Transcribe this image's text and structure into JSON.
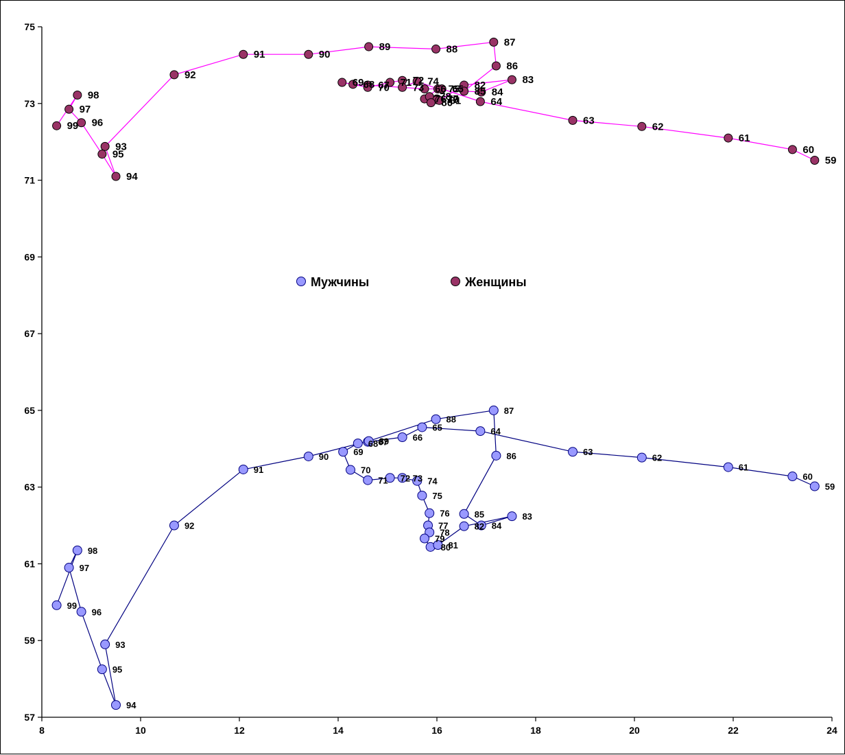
{
  "chart_data": {
    "type": "scatter",
    "title": "",
    "xlabel": "",
    "ylabel": "",
    "xlim": [
      8,
      24
    ],
    "ylim": [
      57,
      75
    ],
    "x_ticks": [
      "8",
      "10",
      "12",
      "14",
      "16",
      "18",
      "20",
      "22",
      "24"
    ],
    "y_ticks": [
      "57",
      "59",
      "61",
      "63",
      "65",
      "67",
      "69",
      "71",
      "73",
      "75"
    ],
    "grid": false,
    "legend_position": "center",
    "series": [
      {
        "name": "Мужчины",
        "color": "#9999ff",
        "line_color": "#000080",
        "points": [
          {
            "label": "59",
            "x": 23.65,
            "y": 63.02
          },
          {
            "label": "60",
            "x": 23.2,
            "y": 63.28
          },
          {
            "label": "61",
            "x": 21.9,
            "y": 63.52
          },
          {
            "label": "62",
            "x": 20.15,
            "y": 63.77
          },
          {
            "label": "63",
            "x": 18.75,
            "y": 63.92
          },
          {
            "label": "64",
            "x": 16.88,
            "y": 64.46
          },
          {
            "label": "65",
            "x": 15.7,
            "y": 64.56
          },
          {
            "label": "66",
            "x": 15.3,
            "y": 64.3
          },
          {
            "label": "67",
            "x": 14.6,
            "y": 64.18
          },
          {
            "label": "68",
            "x": 14.4,
            "y": 64.14
          },
          {
            "label": "69",
            "x": 14.1,
            "y": 63.92
          },
          {
            "label": "70",
            "x": 14.25,
            "y": 63.45
          },
          {
            "label": "71",
            "x": 14.6,
            "y": 63.18
          },
          {
            "label": "72",
            "x": 15.05,
            "y": 63.24
          },
          {
            "label": "73",
            "x": 15.3,
            "y": 63.24
          },
          {
            "label": "74",
            "x": 15.6,
            "y": 63.16
          },
          {
            "label": "75",
            "x": 15.7,
            "y": 62.78
          },
          {
            "label": "76",
            "x": 15.85,
            "y": 62.32
          },
          {
            "label": "77",
            "x": 15.82,
            "y": 62.0
          },
          {
            "label": "78",
            "x": 15.85,
            "y": 61.82
          },
          {
            "label": "79",
            "x": 15.75,
            "y": 61.66
          },
          {
            "label": "80",
            "x": 15.87,
            "y": 61.44
          },
          {
            "label": "81",
            "x": 16.02,
            "y": 61.49
          },
          {
            "label": "82",
            "x": 16.55,
            "y": 61.98
          },
          {
            "label": "83",
            "x": 17.52,
            "y": 62.24
          },
          {
            "label": "84",
            "x": 16.9,
            "y": 62.0
          },
          {
            "label": "85",
            "x": 16.55,
            "y": 62.3
          },
          {
            "label": "86",
            "x": 17.2,
            "y": 63.82
          },
          {
            "label": "87",
            "x": 17.15,
            "y": 65.0
          },
          {
            "label": "88",
            "x": 15.98,
            "y": 64.77
          },
          {
            "label": "89",
            "x": 14.62,
            "y": 64.2
          },
          {
            "label": "90",
            "x": 13.4,
            "y": 63.8
          },
          {
            "label": "91",
            "x": 12.08,
            "y": 63.46
          },
          {
            "label": "92",
            "x": 10.68,
            "y": 62.0
          },
          {
            "label": "93",
            "x": 9.28,
            "y": 58.9
          },
          {
            "label": "94",
            "x": 9.5,
            "y": 57.32
          },
          {
            "label": "95",
            "x": 9.22,
            "y": 58.25
          },
          {
            "label": "96",
            "x": 8.8,
            "y": 59.75
          },
          {
            "label": "97",
            "x": 8.55,
            "y": 60.9
          },
          {
            "label": "98",
            "x": 8.72,
            "y": 61.35
          },
          {
            "label": "99",
            "x": 8.3,
            "y": 59.92
          }
        ]
      },
      {
        "name": "Женщины",
        "color": "#993366",
        "line_color": "#ff00ff",
        "points": [
          {
            "label": "59",
            "x": 23.65,
            "y": 71.52
          },
          {
            "label": "60",
            "x": 23.2,
            "y": 71.8
          },
          {
            "label": "61",
            "x": 21.9,
            "y": 72.1
          },
          {
            "label": "62",
            "x": 20.15,
            "y": 72.4
          },
          {
            "label": "63",
            "x": 18.75,
            "y": 72.56
          },
          {
            "label": "64",
            "x": 16.88,
            "y": 73.05
          },
          {
            "label": "65",
            "x": 16.1,
            "y": 73.38
          },
          {
            "label": "66",
            "x": 15.75,
            "y": 73.38
          },
          {
            "label": "67",
            "x": 14.6,
            "y": 73.48
          },
          {
            "label": "68",
            "x": 14.3,
            "y": 73.5
          },
          {
            "label": "69",
            "x": 14.08,
            "y": 73.55
          },
          {
            "label": "70",
            "x": 14.6,
            "y": 73.42
          },
          {
            "label": "71",
            "x": 15.05,
            "y": 73.55
          },
          {
            "label": "72",
            "x": 15.3,
            "y": 73.6
          },
          {
            "label": "73",
            "x": 15.3,
            "y": 73.42
          },
          {
            "label": "74",
            "x": 15.6,
            "y": 73.58
          },
          {
            "label": "75",
            "x": 16.02,
            "y": 73.38
          },
          {
            "label": "76",
            "x": 15.75,
            "y": 73.12
          },
          {
            "label": "77",
            "x": 16.0,
            "y": 73.12
          },
          {
            "label": "78",
            "x": 15.85,
            "y": 73.18
          },
          {
            "label": "79",
            "x": 16.0,
            "y": 73.1
          },
          {
            "label": "80",
            "x": 15.88,
            "y": 73.02
          },
          {
            "label": "81",
            "x": 16.05,
            "y": 73.08
          },
          {
            "label": "82",
            "x": 16.55,
            "y": 73.48
          },
          {
            "label": "83",
            "x": 17.52,
            "y": 73.62
          },
          {
            "label": "84",
            "x": 16.9,
            "y": 73.3
          },
          {
            "label": "85",
            "x": 16.55,
            "y": 73.32
          },
          {
            "label": "86",
            "x": 17.2,
            "y": 73.98
          },
          {
            "label": "87",
            "x": 17.15,
            "y": 74.6
          },
          {
            "label": "88",
            "x": 15.98,
            "y": 74.42
          },
          {
            "label": "89",
            "x": 14.62,
            "y": 74.48
          },
          {
            "label": "90",
            "x": 13.4,
            "y": 74.28
          },
          {
            "label": "91",
            "x": 12.08,
            "y": 74.28
          },
          {
            "label": "92",
            "x": 10.68,
            "y": 73.75
          },
          {
            "label": "93",
            "x": 9.28,
            "y": 71.88
          },
          {
            "label": "94",
            "x": 9.5,
            "y": 71.1
          },
          {
            "label": "95",
            "x": 9.22,
            "y": 71.68
          },
          {
            "label": "96",
            "x": 8.8,
            "y": 72.5
          },
          {
            "label": "97",
            "x": 8.55,
            "y": 72.85
          },
          {
            "label": "98",
            "x": 8.72,
            "y": 73.22
          },
          {
            "label": "99",
            "x": 8.3,
            "y": 72.42
          }
        ]
      }
    ]
  }
}
